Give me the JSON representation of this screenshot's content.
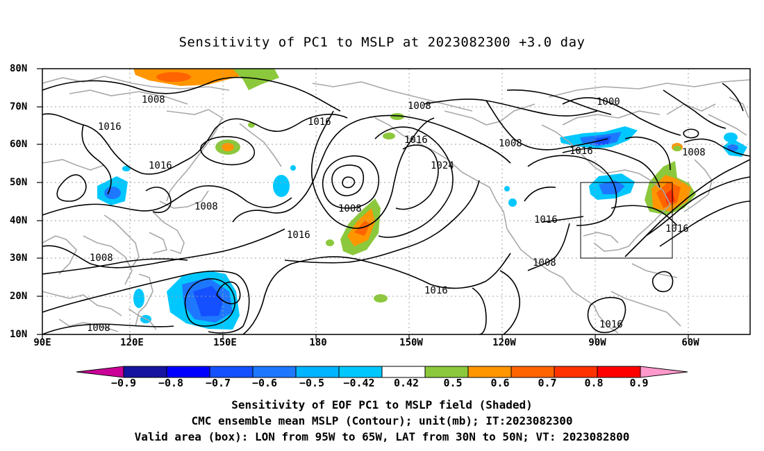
{
  "title": "Sensitivity of PC1 to MSLP at 2023082300 +3.0 day",
  "axes": {
    "lat_labels": [
      "80N",
      "70N",
      "60N",
      "50N",
      "40N",
      "30N",
      "20N",
      "10N"
    ],
    "lon_labels": [
      "90E",
      "120E",
      "150E",
      "180",
      "150W",
      "120W",
      "90W",
      "60W"
    ]
  },
  "contour_labels": [
    "1008",
    "1016",
    "1016",
    "1008",
    "1016",
    "1016",
    "1008",
    "1016",
    "1024",
    "1008",
    "1016",
    "1008",
    "1016",
    "1008",
    "1008",
    "1000",
    "1016",
    "1008",
    "1016",
    "1016"
  ],
  "colorbar": {
    "labels": [
      "−0.9",
      "−0.8",
      "−0.7",
      "−0.6",
      "−0.5",
      "−0.42",
      "0.42",
      "0.5",
      "0.6",
      "0.7",
      "0.8",
      "0.9"
    ],
    "colors": [
      "#cc0099",
      "#1414a0",
      "#0000ff",
      "#1450ff",
      "#1e78ff",
      "#00b4ff",
      "#00c8ff",
      "#ffffff",
      "#8cc83c",
      "#ff9600",
      "#ff6400",
      "#ff3200",
      "#ff0000",
      "#ff99cc"
    ]
  },
  "captions": {
    "line1": "Sensitivity of EOF PC1 to MSLP field (Shaded)",
    "line2": "CMC ensemble mean MSLP (Contour); unit(mb); IT:2023082300",
    "line3": "Valid area (box): LON from 95W to 65W, LAT from 30N to 50N; VT: 2023082800"
  }
}
